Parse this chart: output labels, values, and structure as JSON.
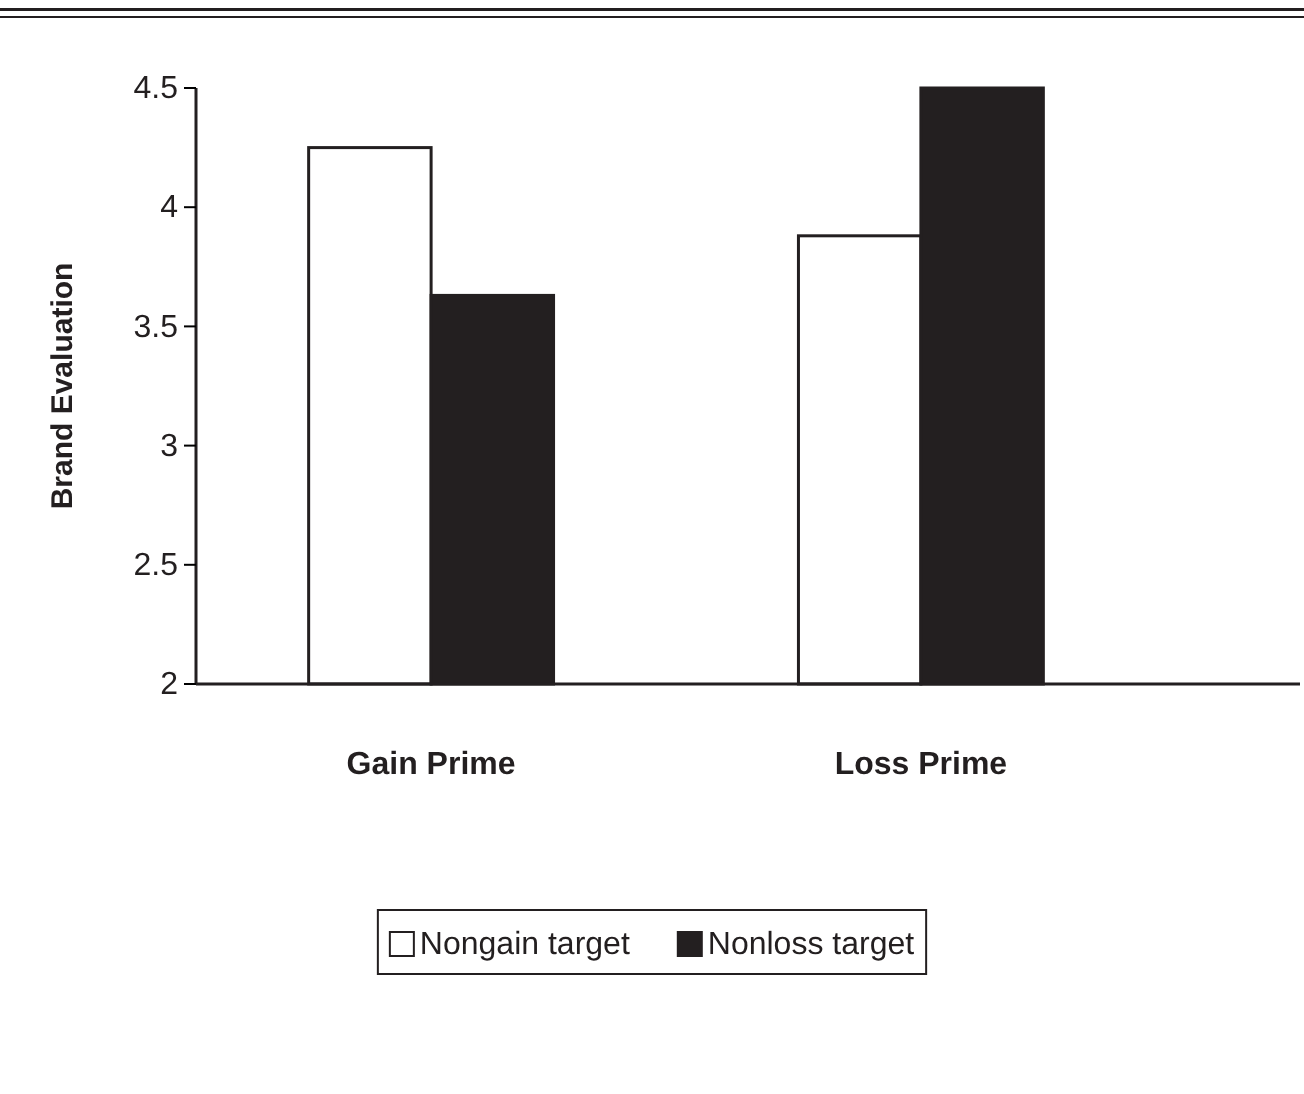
{
  "chart_data": {
    "type": "bar",
    "ylabel": "Brand Evaluation",
    "categories": [
      "Gain Prime",
      "Loss Prime"
    ],
    "series": [
      {
        "name": "Nongain target",
        "color": "#ffffff",
        "values": [
          4.25,
          3.88
        ]
      },
      {
        "name": "Nonloss target",
        "color": "#231f20",
        "values": [
          3.63,
          4.5
        ]
      }
    ],
    "ylim": [
      2,
      4.5
    ],
    "yticks": [
      2,
      2.5,
      3,
      3.5,
      4,
      4.5
    ],
    "grid": false,
    "legend": "bottom"
  }
}
